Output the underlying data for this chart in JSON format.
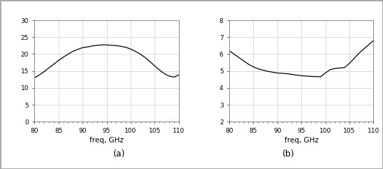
{
  "freq": [
    80,
    81,
    82,
    83,
    84,
    85,
    86,
    87,
    88,
    89,
    90,
    91,
    92,
    93,
    94,
    95,
    96,
    97,
    98,
    99,
    100,
    101,
    102,
    103,
    104,
    105,
    106,
    107,
    108,
    109,
    110
  ],
  "gain": [
    13.0,
    13.8,
    14.8,
    15.9,
    17.0,
    18.1,
    19.1,
    20.0,
    20.8,
    21.4,
    21.9,
    22.1,
    22.4,
    22.6,
    22.7,
    22.7,
    22.6,
    22.5,
    22.3,
    22.0,
    21.5,
    20.8,
    20.0,
    19.0,
    17.8,
    16.5,
    15.3,
    14.2,
    13.5,
    13.2,
    13.8
  ],
  "nf": [
    6.2,
    6.0,
    5.8,
    5.6,
    5.4,
    5.25,
    5.13,
    5.05,
    4.98,
    4.93,
    4.88,
    4.86,
    4.84,
    4.8,
    4.76,
    4.72,
    4.7,
    4.68,
    4.67,
    4.66,
    4.88,
    5.08,
    5.15,
    5.18,
    5.2,
    5.45,
    5.75,
    6.05,
    6.3,
    6.55,
    6.8
  ],
  "gain_ylim": [
    0,
    30
  ],
  "gain_yticks": [
    0,
    5,
    10,
    15,
    20,
    25,
    30
  ],
  "nf_ylim": [
    2,
    8
  ],
  "nf_yticks": [
    2,
    3,
    4,
    5,
    6,
    7,
    8
  ],
  "xlim": [
    80,
    110
  ],
  "xticks": [
    80,
    85,
    90,
    95,
    100,
    105,
    110
  ],
  "xlabel": "freq, GHz",
  "label_a": "(a)",
  "label_b": "(b)",
  "line_color": "#000000",
  "grid_color": "#cccccc",
  "bg_color": "#ffffff",
  "fig_bg": "#ffffff",
  "outer_border_color": "#aaaaaa",
  "tick_fontsize": 6.5,
  "xlabel_fontsize": 7.5,
  "label_fontsize": 9
}
